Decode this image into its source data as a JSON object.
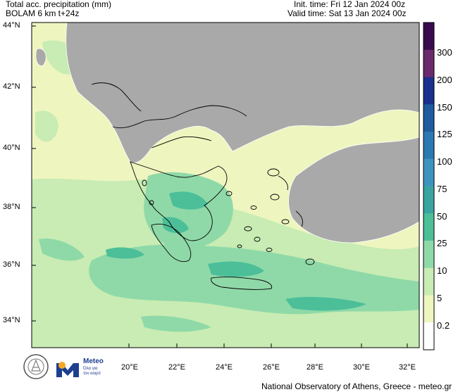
{
  "header": {
    "title_line1": "Total acc. precipitation (mm)",
    "title_line2": "BOLAM 6 km t+24z",
    "init_time": "Init. time: Fri 12 Jan 2024 00z",
    "valid_time": "Valid time: Sat 13 Jan 2024 00z"
  },
  "axes": {
    "lat_labels": [
      "44°N",
      "42°N",
      "40°N",
      "38°N",
      "36°N",
      "34°N"
    ],
    "lon_labels": [
      "20°E",
      "22°E",
      "24°E",
      "26°E",
      "28°E",
      "30°E",
      "32°E"
    ]
  },
  "colorbar": {
    "labels": [
      "300",
      "200",
      "150",
      "125",
      "100",
      "75",
      "50",
      "25",
      "10",
      "5",
      "0.2"
    ],
    "colors": [
      "#3a0a4f",
      "#6b2a6b",
      "#1c2f8e",
      "#1f5b9e",
      "#2a79b3",
      "#3e94bf",
      "#3aa5a0",
      "#4cbf99",
      "#8fd9a8",
      "#c8ecb3",
      "#eef5bf",
      "#ffffff"
    ]
  },
  "logos": {
    "meteo_name": "Meteo",
    "meteo_tag1": "Όλα για",
    "meteo_tag2": "τον καιρό"
  },
  "footer": {
    "credit": "National Observatory of Athens, Greece - meteo.gr"
  }
}
